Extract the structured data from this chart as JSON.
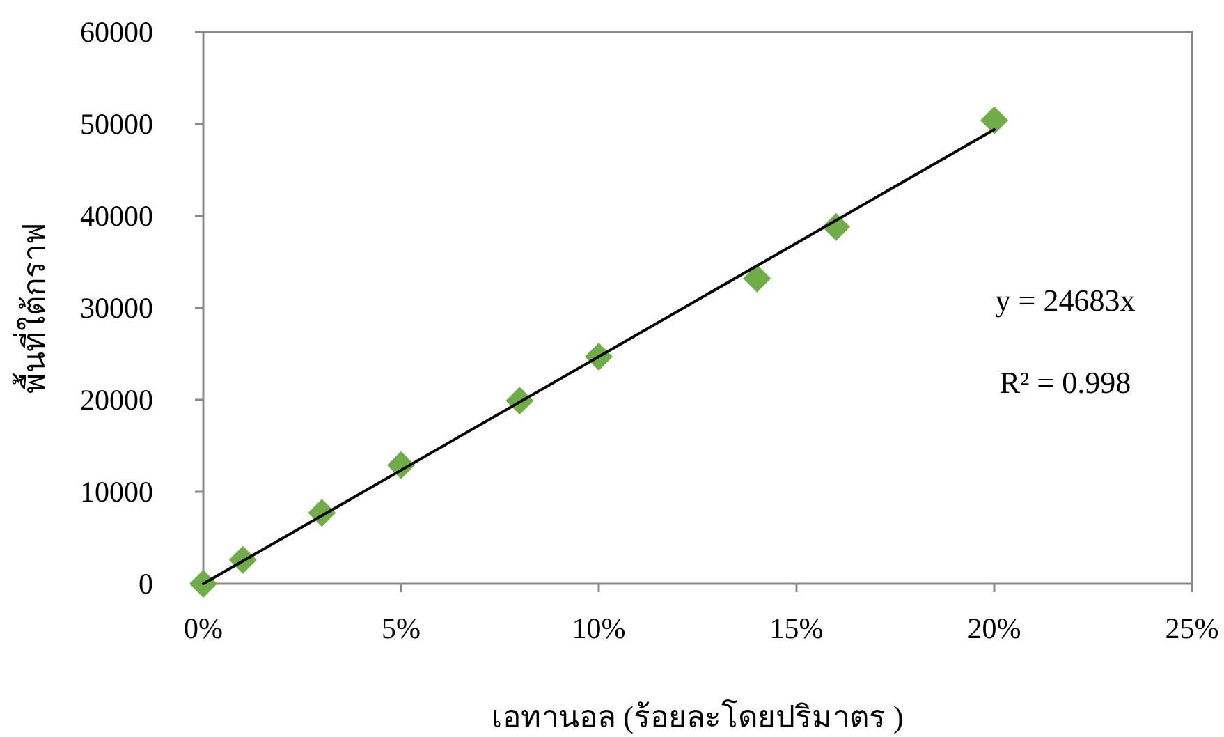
{
  "chart_data": {
    "type": "scatter",
    "xlabel": "เอทานอล (ร้อยละโดยปริมาตร )",
    "ylabel": "พื้นที่ใต้กราฟ",
    "xlim": [
      0,
      25
    ],
    "xticks": [
      {
        "value": 0,
        "label": "0%"
      },
      {
        "value": 5,
        "label": "5%"
      },
      {
        "value": 10,
        "label": "10%"
      },
      {
        "value": 15,
        "label": "15%"
      },
      {
        "value": 20,
        "label": "20%"
      },
      {
        "value": 25,
        "label": "25%"
      }
    ],
    "ylim": [
      0,
      60000
    ],
    "yticks": [
      0,
      10000,
      20000,
      30000,
      40000,
      50000,
      60000
    ],
    "grid": false,
    "marker": "diamond",
    "annotations": [
      "y = 24683x",
      "R² = 0.998"
    ],
    "series": [
      {
        "color": "#70ad47",
        "x": [
          0,
          1,
          3,
          5,
          8,
          10,
          14,
          16,
          20
        ],
        "values": [
          0,
          2600,
          7700,
          12900,
          19900,
          24700,
          33200,
          38800,
          50400
        ]
      },
      {
        "type": "line",
        "color": "#000000",
        "marker": "none",
        "x": [
          0,
          20
        ],
        "values": [
          0,
          49400
        ]
      }
    ]
  }
}
